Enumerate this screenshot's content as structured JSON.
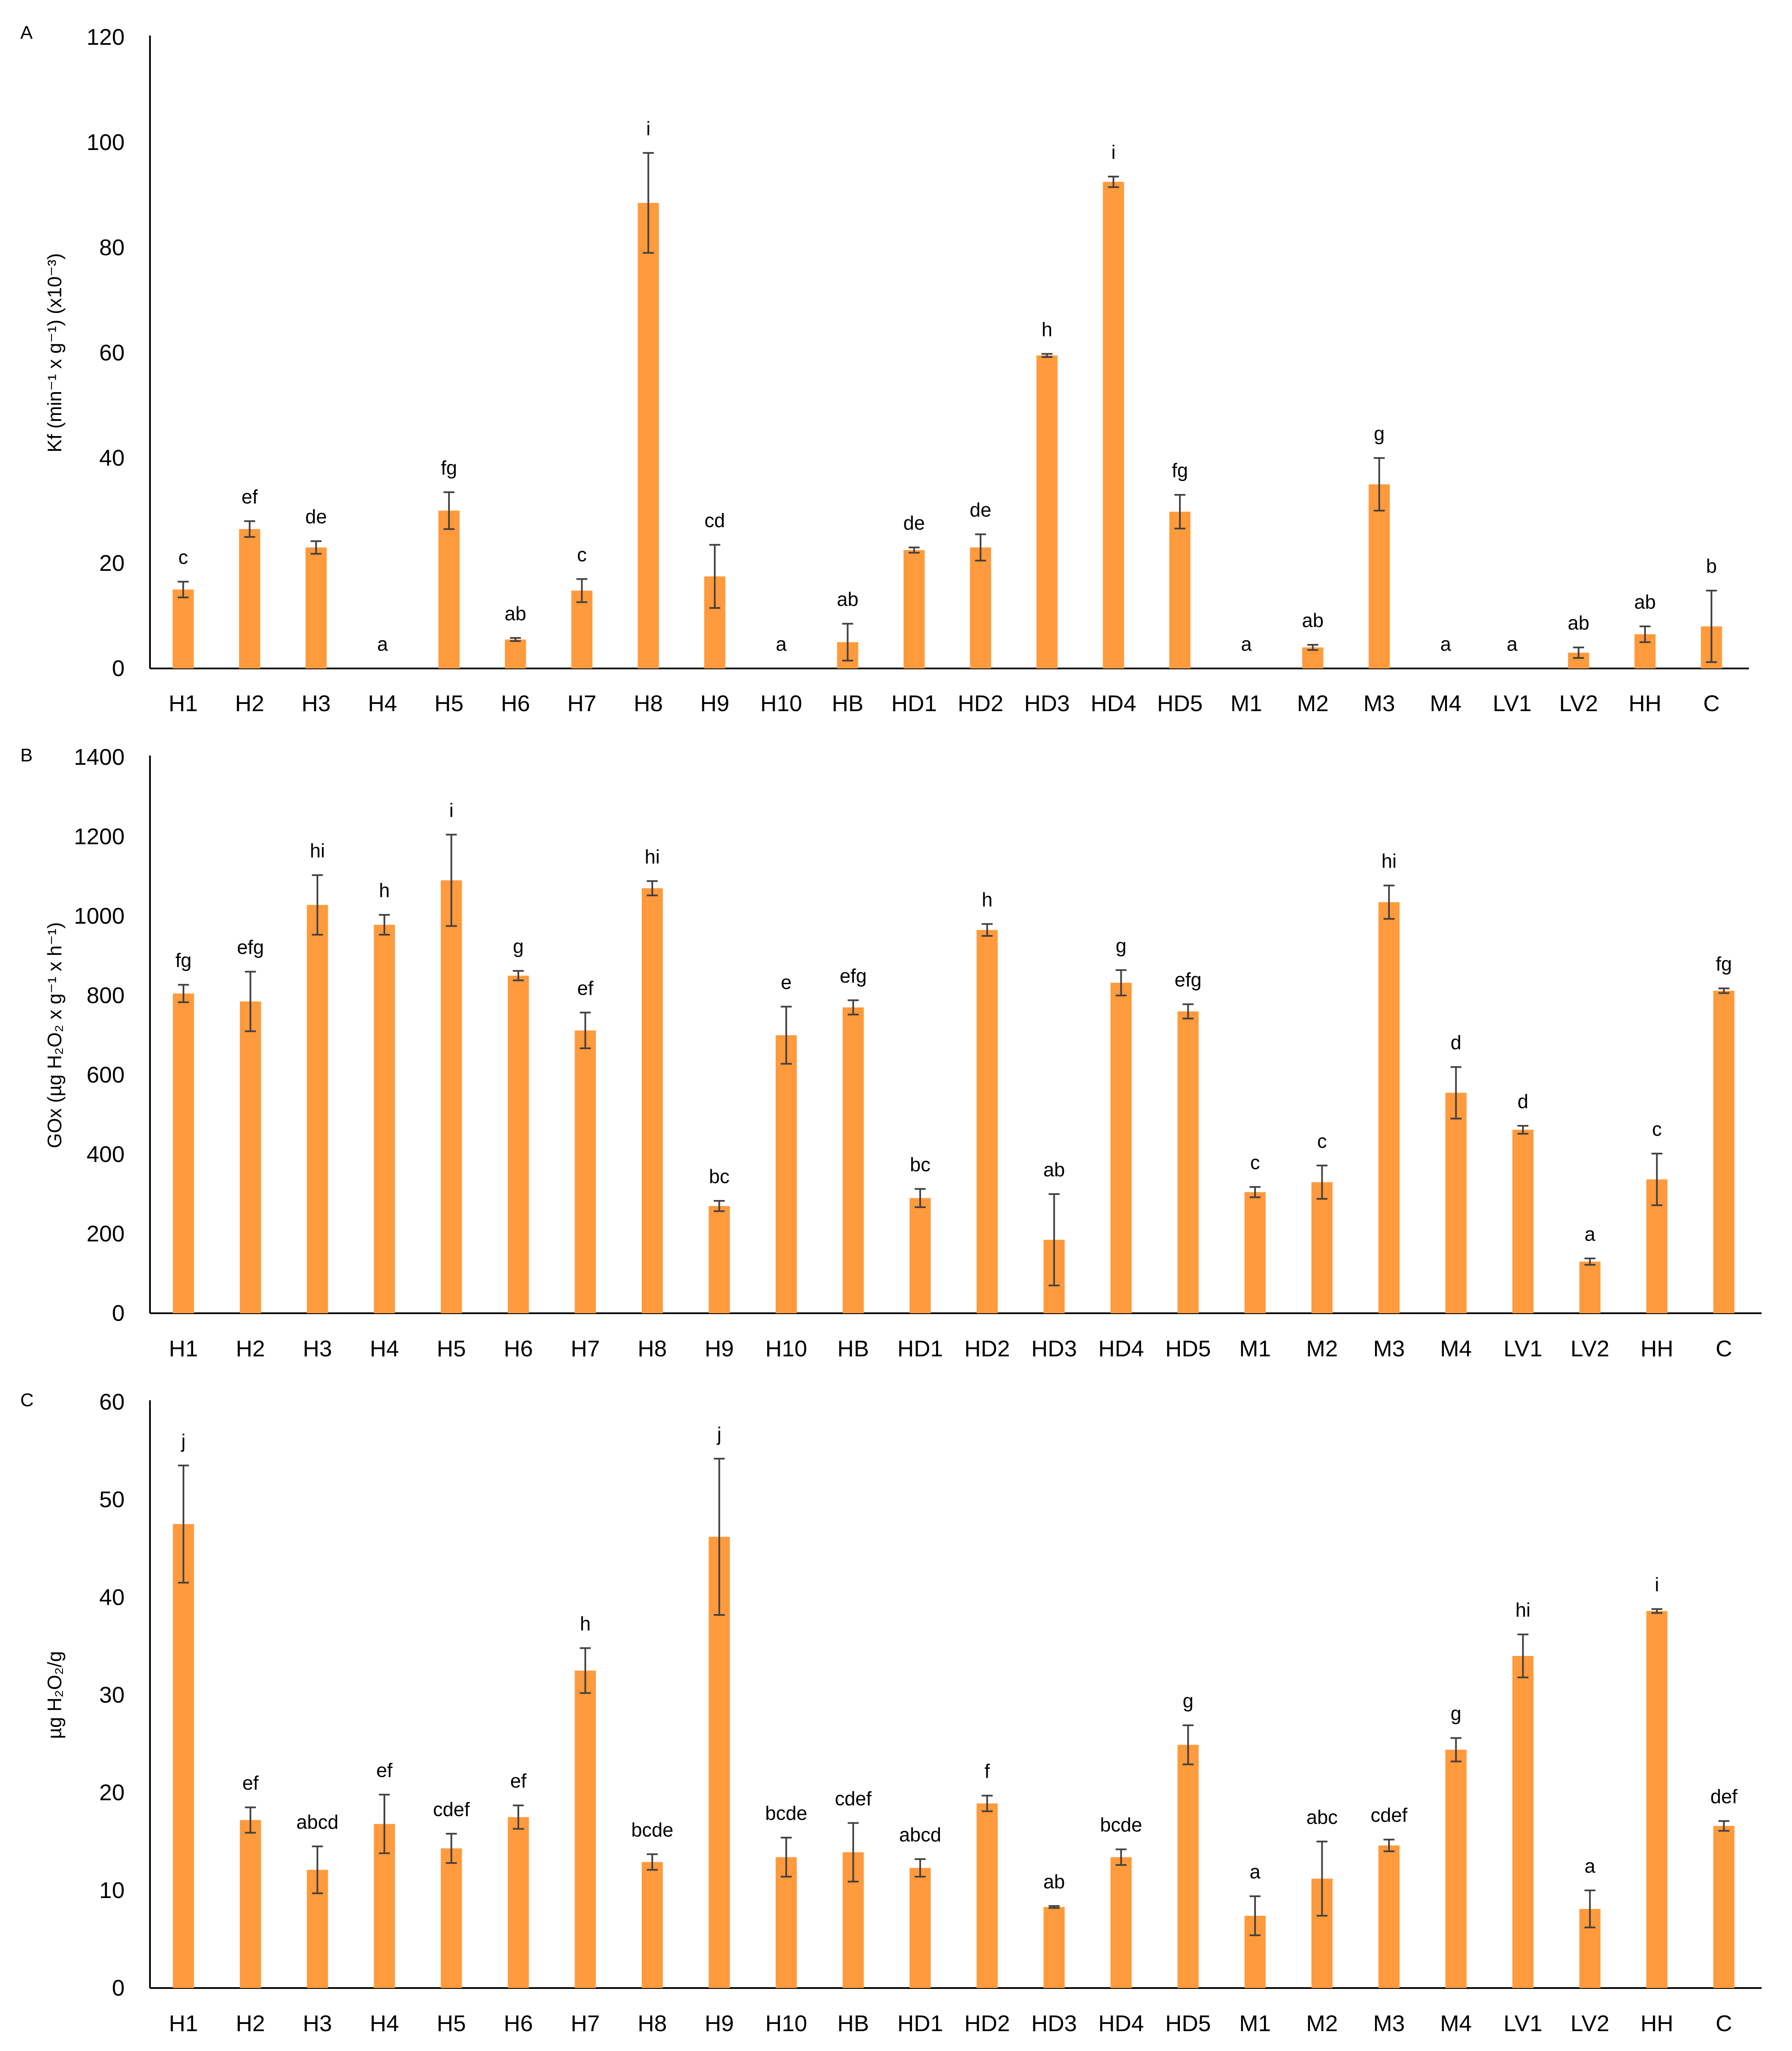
{
  "colors": {
    "bar": "#FF9A3D",
    "axis": "#000000",
    "error": "#404040"
  },
  "chart_data": [
    {
      "type": "bar",
      "panel": "A",
      "ylabel": "Kf (min⁻¹ x g⁻¹) (x10⁻³)",
      "ylim": [
        0,
        120
      ],
      "yticks": [
        0,
        20,
        40,
        60,
        80,
        100,
        120
      ],
      "categories": [
        "H1",
        "H2",
        "H3",
        "H4",
        "H5",
        "H6",
        "H7",
        "H8",
        "H9",
        "H10",
        "HB",
        "HD1",
        "HD2",
        "HD3",
        "HD4",
        "HD5",
        "M1",
        "M2",
        "M3",
        "M4",
        "LV1",
        "LV2",
        "HH",
        "C"
      ],
      "values": [
        15,
        26.5,
        23,
        0,
        30,
        5.5,
        14.8,
        88.5,
        17.5,
        0,
        5,
        22.5,
        23,
        59.5,
        92.5,
        29.8,
        0,
        4,
        35,
        0,
        0,
        3,
        6.5,
        8
      ],
      "errors": [
        1.5,
        1.5,
        1.2,
        0,
        3.5,
        0.3,
        2.2,
        9.5,
        6,
        0,
        3.5,
        0.5,
        2.5,
        0.3,
        1,
        3.2,
        0,
        0.5,
        5,
        0,
        0,
        1,
        1.5,
        6.8
      ],
      "letters": [
        "c",
        "ef",
        "de",
        "a",
        "fg",
        "ab",
        "c",
        "i",
        "cd",
        "a",
        "ab",
        "de",
        "de",
        "h",
        "i",
        "fg",
        "a",
        "ab",
        "g",
        "a",
        "a",
        "ab",
        "ab",
        "b"
      ]
    },
    {
      "type": "bar",
      "panel": "B",
      "ylabel": "GOx (µg H₂O₂ x g⁻¹ x h⁻¹)",
      "ylim": [
        0,
        1400
      ],
      "yticks": [
        0,
        200,
        400,
        600,
        800,
        1000,
        1200,
        1400
      ],
      "categories": [
        "H1",
        "H2",
        "H3",
        "H4",
        "H5",
        "H6",
        "H7",
        "H8",
        "H9",
        "H10",
        "HB",
        "HD1",
        "HD2",
        "HD3",
        "HD4",
        "HD5",
        "M1",
        "M2",
        "M3",
        "M4",
        "LV1",
        "LV2",
        "HH",
        "C"
      ],
      "values": [
        805,
        785,
        1028,
        978,
        1090,
        850,
        712,
        1070,
        270,
        700,
        770,
        290,
        965,
        185,
        832,
        760,
        305,
        330,
        1035,
        555,
        462,
        130,
        337,
        812
      ],
      "errors": [
        22,
        75,
        75,
        25,
        115,
        12,
        45,
        18,
        13,
        72,
        18,
        23,
        15,
        115,
        32,
        18,
        13,
        42,
        42,
        65,
        10,
        8,
        65,
        6
      ],
      "letters": [
        "fg",
        "efg",
        "hi",
        "h",
        "i",
        "g",
        "ef",
        "hi",
        "bc",
        "e",
        "efg",
        "bc",
        "h",
        "ab",
        "g",
        "efg",
        "c",
        "c",
        "hi",
        "d",
        "d",
        "a",
        "c",
        "fg"
      ]
    },
    {
      "type": "bar",
      "panel": "C",
      "ylabel": "µg H₂O₂/g",
      "ylim": [
        0,
        60
      ],
      "yticks": [
        0,
        10,
        20,
        30,
        40,
        50,
        60
      ],
      "categories": [
        "H1",
        "H2",
        "H3",
        "H4",
        "H5",
        "H6",
        "H7",
        "H8",
        "H9",
        "H10",
        "HB",
        "HD1",
        "HD2",
        "HD3",
        "HD4",
        "HD5",
        "M1",
        "M2",
        "M3",
        "M4",
        "LV1",
        "LV2",
        "HH",
        "C"
      ],
      "values": [
        47.5,
        17.2,
        12.1,
        16.8,
        14.3,
        17.5,
        32.5,
        12.9,
        46.2,
        13.4,
        13.9,
        12.3,
        18.9,
        8.3,
        13.4,
        24.9,
        7.4,
        11.2,
        14.6,
        24.4,
        34,
        8.1,
        38.6,
        16.6
      ],
      "errors": [
        6,
        1.3,
        2.4,
        3,
        1.5,
        1.2,
        2.3,
        0.8,
        8,
        2,
        3,
        0.9,
        0.8,
        0.1,
        0.8,
        2,
        2,
        3.8,
        0.6,
        1.2,
        2.2,
        1.9,
        0.2,
        0.5
      ],
      "letters": [
        "j",
        "ef",
        "abcd",
        "ef",
        "cdef",
        "ef",
        "h",
        "bcde",
        "j",
        "bcde",
        "cdef",
        "abcd",
        "f",
        "ab",
        "bcde",
        "g",
        "a",
        "abc",
        "cdef",
        "g",
        "hi",
        "a",
        "i",
        "def"
      ]
    }
  ]
}
